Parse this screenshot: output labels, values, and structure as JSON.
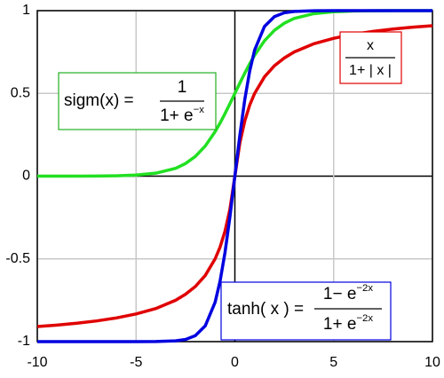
{
  "chart_data": {
    "type": "line",
    "x": [
      -10,
      -9,
      -8,
      -7,
      -6,
      -5,
      -4,
      -3,
      -2.5,
      -2,
      -1.5,
      -1,
      -0.75,
      -0.5,
      -0.25,
      0,
      0.25,
      0.5,
      0.75,
      1,
      1.5,
      2,
      2.5,
      3,
      4,
      5,
      6,
      7,
      8,
      9,
      10
    ],
    "series": [
      {
        "color": "#e00000",
        "values": [
          -0.909,
          -0.9,
          -0.889,
          -0.875,
          -0.857,
          -0.833,
          -0.8,
          -0.75,
          -0.714,
          -0.667,
          -0.6,
          -0.5,
          -0.429,
          -0.333,
          -0.2,
          0,
          0.2,
          0.333,
          0.429,
          0.5,
          0.6,
          0.667,
          0.714,
          0.75,
          0.8,
          0.833,
          0.857,
          0.875,
          0.889,
          0.9,
          0.909
        ]
      },
      {
        "color": "#22e022",
        "values": [
          0,
          0,
          0,
          0.001,
          0.002,
          0.007,
          0.018,
          0.047,
          0.076,
          0.119,
          0.182,
          0.269,
          0.321,
          0.378,
          0.438,
          0.5,
          0.562,
          0.622,
          0.679,
          0.731,
          0.818,
          0.881,
          0.924,
          0.953,
          0.982,
          0.993,
          0.998,
          0.999,
          1,
          1,
          1
        ]
      },
      {
        "color": "#0000e0",
        "values": [
          -1,
          -1,
          -1,
          -1,
          -1,
          -1,
          -0.999,
          -0.995,
          -0.987,
          -0.964,
          -0.905,
          -0.762,
          -0.635,
          -0.462,
          -0.245,
          0,
          0.245,
          0.462,
          0.635,
          0.762,
          0.905,
          0.964,
          0.987,
          0.995,
          0.999,
          1,
          1,
          1,
          1,
          1,
          1
        ]
      }
    ],
    "xlim": [
      -10,
      10
    ],
    "ylim": [
      -1,
      1
    ],
    "xticks": [
      -10,
      -5,
      0,
      5,
      10
    ],
    "yticks": [
      -1,
      -0.5,
      0,
      0.5,
      1
    ],
    "grid": true,
    "annotations": [
      {
        "lhs": "sigm(x) =",
        "num": "1",
        "den": "1+ e",
        "den_sup": "−x",
        "color": "#22b022"
      },
      {
        "num": "x",
        "den": "1+ | x |",
        "color": "#e00000"
      },
      {
        "lhs": "tanh( x ) =",
        "num": "1− e",
        "num_sup": "−2x",
        "den": "1+ e",
        "den_sup": "−2x",
        "color": "#0000e0"
      }
    ]
  }
}
